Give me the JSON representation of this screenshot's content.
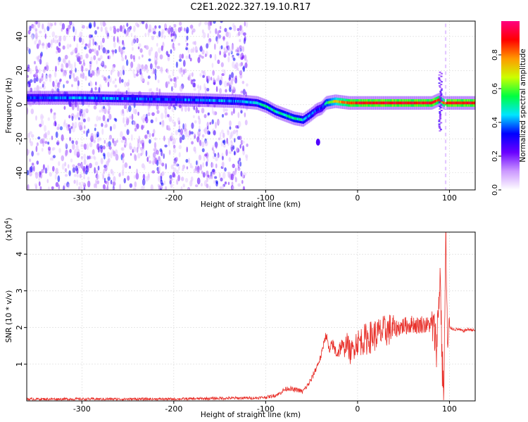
{
  "chart_data": [
    {
      "type": "heatmap",
      "title": "C2E1.2022.327.19.10.R17",
      "xlabel": "Height of straight line (km)",
      "ylabel": "Frequency (Hz)",
      "xlim": [
        -360,
        128
      ],
      "ylim": [
        -50,
        49
      ],
      "xticks": [
        -300,
        -200,
        -100,
        0,
        100
      ],
      "yticks": [
        -40,
        -20,
        0,
        20,
        40
      ],
      "grid": true,
      "colorbar": {
        "label": "Normalized spectral amplitude",
        "range": [
          0,
          1
        ],
        "ticks": [
          "0.0",
          "0.2",
          "0.4",
          "0.6",
          "0.8"
        ],
        "colors": [
          "#ffffff",
          "#cc99ff",
          "#6a00ff",
          "#0000ff",
          "#00e5ff",
          "#00ff40",
          "#ccff00",
          "#ff9900",
          "#ff0000",
          "#ff0080"
        ]
      },
      "ridge": {
        "x": [
          -360,
          -300,
          -250,
          -200,
          -160,
          -130,
          -110,
          -100,
          -90,
          -80,
          -70,
          -60,
          -52,
          -45,
          -40,
          -35,
          -25,
          -10,
          0,
          20,
          50,
          80,
          88,
          93,
          100,
          128
        ],
        "y": [
          4,
          4,
          3.5,
          3,
          2.5,
          2,
          1,
          -1,
          -4,
          -6,
          -8,
          -9,
          -6,
          -3,
          -2,
          1,
          2,
          1,
          1,
          1,
          1,
          1,
          3,
          1,
          1,
          1
        ],
        "peak_amplitude": [
          0.35,
          0.4,
          0.38,
          0.35,
          0.42,
          0.4,
          0.45,
          0.5,
          0.48,
          0.5,
          0.5,
          0.45,
          0.4,
          0.35,
          0.3,
          0.5,
          0.7,
          0.85,
          0.9,
          0.92,
          0.92,
          0.9,
          0.85,
          0.8,
          0.92,
          0.92
        ]
      },
      "isolated_feature": {
        "x": -43,
        "y": -22,
        "amplitude": 0.25
      },
      "noise_region_x": [
        -360,
        -120
      ]
    },
    {
      "type": "line",
      "title": "",
      "xlabel": "Height of straight line (km)",
      "ylabel": "SNR (10 * v/v)",
      "scale_label": "(x10",
      "scale_exponent": "4",
      "scale_close": ")",
      "scale_factor": 10000,
      "xlim": [
        -360,
        128
      ],
      "ylim": [
        0,
        4.6
      ],
      "xticks": [
        -300,
        -200,
        -100,
        0,
        100
      ],
      "yticks": [
        1,
        2,
        3,
        4
      ],
      "grid": true,
      "series": [
        {
          "color": "#e8302a",
          "x": [
            -360,
            -300,
            -200,
            -150,
            -120,
            -110,
            -100,
            -95,
            -90,
            -85,
            -80,
            -75,
            -70,
            -65,
            -60,
            -55,
            -50,
            -45,
            -40,
            -38,
            -36,
            -34,
            -32,
            -30,
            -28,
            -25,
            -22,
            -20,
            -18,
            -15,
            -12,
            -10,
            -8,
            -5,
            -2,
            0,
            5,
            10,
            15,
            20,
            25,
            30,
            35,
            40,
            45,
            50,
            55,
            60,
            65,
            70,
            75,
            80,
            82,
            84,
            86,
            88,
            90,
            92,
            94,
            96,
            98,
            100,
            105,
            110,
            115,
            120,
            128
          ],
          "y": [
            0.05,
            0.05,
            0.05,
            0.07,
            0.08,
            0.08,
            0.1,
            0.12,
            0.15,
            0.2,
            0.3,
            0.35,
            0.3,
            0.3,
            0.25,
            0.4,
            0.6,
            0.9,
            1.2,
            1.4,
            1.7,
            1.8,
            1.5,
            1.3,
            1.6,
            1.4,
            1.3,
            1.4,
            1.5,
            1.4,
            1.6,
            1.5,
            1.3,
            1.4,
            1.6,
            1.6,
            1.65,
            1.7,
            1.75,
            1.8,
            1.85,
            1.9,
            1.95,
            1.95,
            2.0,
            2.05,
            2.05,
            2.1,
            2.05,
            2.1,
            2.05,
            2.1,
            2.0,
            1.8,
            1.5,
            2.5,
            3.5,
            1.0,
            0.3,
            4.6,
            1.3,
            2.0,
            1.95,
            1.95,
            1.9,
            1.95,
            1.92
          ]
        }
      ]
    }
  ]
}
